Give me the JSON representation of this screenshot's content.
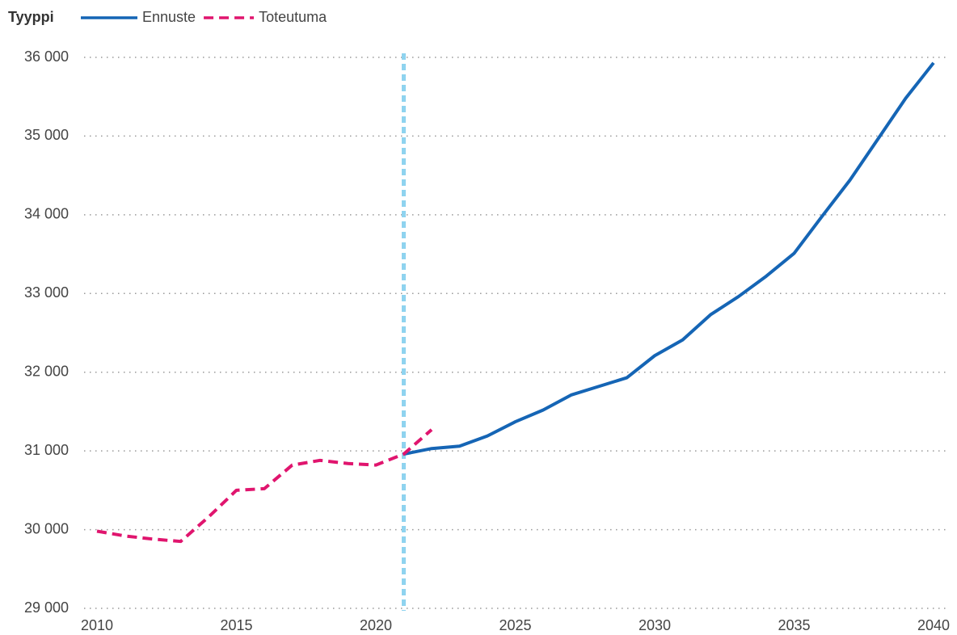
{
  "chart_data": {
    "type": "line",
    "legend_title": "Tyyppi",
    "x": [
      2010,
      2011,
      2012,
      2013,
      2014,
      2015,
      2016,
      2017,
      2018,
      2019,
      2020,
      2021,
      2022,
      2023,
      2024,
      2025,
      2026,
      2027,
      2028,
      2029,
      2030,
      2031,
      2032,
      2033,
      2034,
      2035,
      2036,
      2037,
      2038,
      2039,
      2040
    ],
    "series": [
      {
        "name": "Ennuste",
        "color": "#1565b5",
        "dash": false,
        "values": [
          null,
          null,
          null,
          null,
          null,
          null,
          null,
          null,
          null,
          null,
          null,
          30960,
          31030,
          31060,
          31190,
          31370,
          31520,
          31710,
          31820,
          31930,
          32210,
          32410,
          32730,
          32960,
          33220,
          33510,
          33980,
          34440,
          34960,
          35480,
          35930
        ]
      },
      {
        "name": "Toteutuma",
        "color": "#e0156e",
        "dash": true,
        "values": [
          29980,
          29920,
          29880,
          29850,
          30160,
          30500,
          30520,
          30820,
          30880,
          30840,
          30820,
          30960,
          31270,
          null,
          null,
          null,
          null,
          null,
          null,
          null,
          null,
          null,
          null,
          null,
          null,
          null,
          null,
          null,
          null,
          null,
          null
        ]
      }
    ],
    "reference_x": 2021,
    "xlim": [
      2010,
      2040
    ],
    "xticks": [
      2010,
      2015,
      2020,
      2025,
      2030,
      2035,
      2040
    ],
    "ylim": [
      29000,
      36000
    ],
    "yticks": [
      {
        "value": 29000,
        "label": "29 000"
      },
      {
        "value": 30000,
        "label": "30 000"
      },
      {
        "value": 31000,
        "label": "31 000"
      },
      {
        "value": 32000,
        "label": "32 000"
      },
      {
        "value": 33000,
        "label": "33 000"
      },
      {
        "value": 34000,
        "label": "34 000"
      },
      {
        "value": 35000,
        "label": "35 000"
      },
      {
        "value": 36000,
        "label": "36 000"
      }
    ],
    "grid": true
  }
}
